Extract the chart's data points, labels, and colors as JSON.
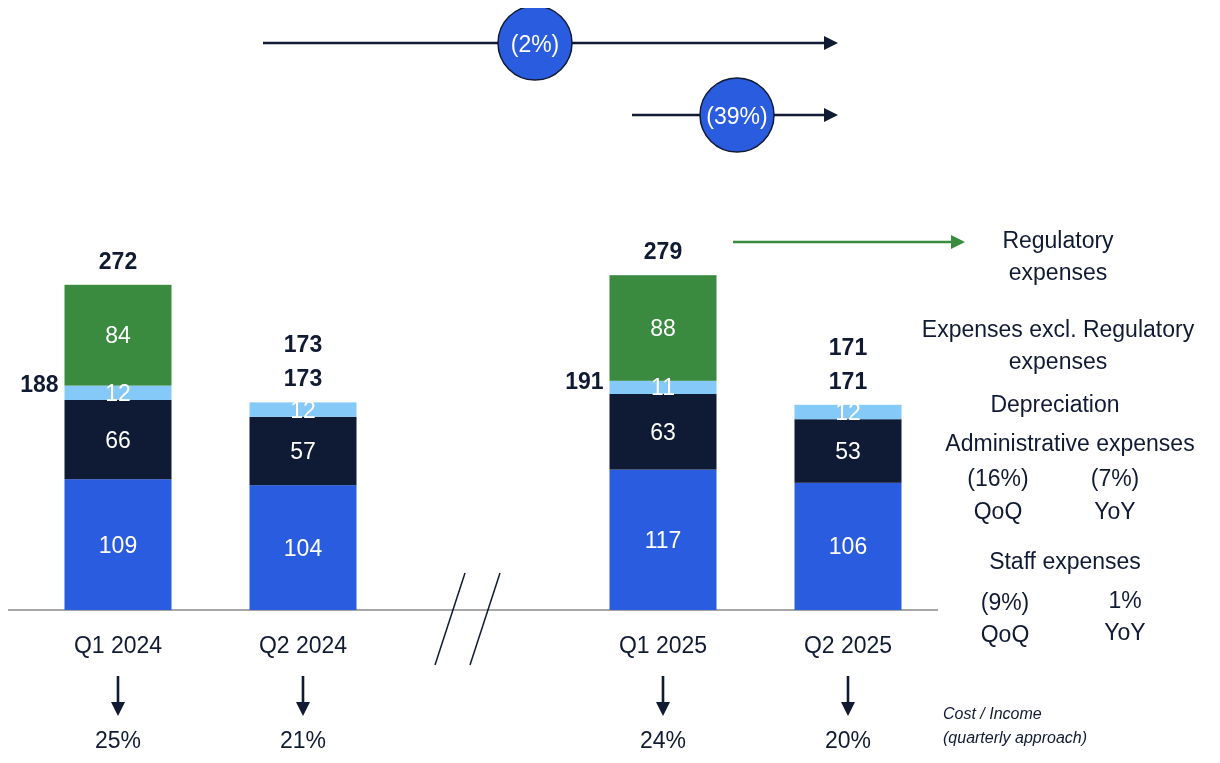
{
  "chart_data": {
    "type": "bar",
    "stacked": true,
    "data_labels": true,
    "legend": "right",
    "categories": [
      "Q1 2024",
      "Q2 2024",
      "Q1 2025",
      "Q2 2025"
    ],
    "series": [
      {
        "name": "Staff expenses",
        "color": "#2a5ce0",
        "values": [
          109,
          104,
          117,
          106
        ]
      },
      {
        "name": "Administrative expenses",
        "color": "#0f1a35",
        "values": [
          66,
          57,
          63,
          53
        ]
      },
      {
        "name": "Depreciation",
        "color": "#84c9f7",
        "values": [
          12,
          12,
          11,
          12
        ]
      },
      {
        "name": "Regulatory expenses",
        "color": "#3a8a40",
        "values": [
          84,
          null,
          88,
          null
        ]
      }
    ],
    "totals": [
      "272",
      "173",
      "279",
      "171"
    ],
    "annotations": [
      "(2%)",
      "(39%)",
      {
        "text": "188",
        "x": "Q1 2024",
        "y": 188
      },
      {
        "text": "173",
        "x": "Q2 2024",
        "y": 173
      },
      {
        "text": "191",
        "x": "Q1 2025",
        "y": 191
      },
      {
        "text": "171",
        "x": "Q2 2025",
        "y": 171
      },
      "Expenses excl. Regulatory expenses",
      "(16%)",
      "QoQ",
      "(7%)",
      "YoY",
      "(9%)",
      "QoQ",
      "1%",
      "YoY",
      "25%",
      "21%",
      "24%",
      "20%",
      "Cost / Income (quarterly approach)"
    ]
  }
}
